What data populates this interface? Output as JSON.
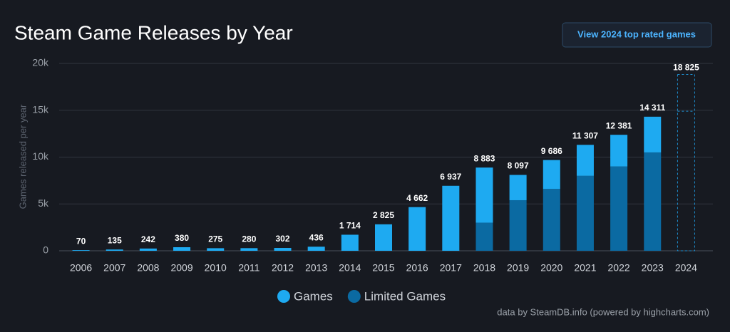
{
  "chart_data": {
    "type": "stacked-bar",
    "title": "Steam Game Releases by Year",
    "button": "View 2024 top rated games",
    "y_label": "Games released per year",
    "credit": "data by SteamDB.info (powered by highcharts.com)",
    "categories": [
      "2006",
      "2007",
      "2008",
      "2009",
      "2010",
      "2011",
      "2012",
      "2013",
      "2014",
      "2015",
      "2016",
      "2017",
      "2018",
      "2019",
      "2020",
      "2021",
      "2022",
      "2023",
      "2024"
    ],
    "series": [
      {
        "name": "Games",
        "color": "#1eaaf1",
        "values": [
          70,
          135,
          242,
          380,
          275,
          280,
          302,
          436,
          1714,
          2825,
          4662,
          6937,
          5883,
          2697,
          3086,
          3307,
          3381,
          3811,
          null
        ]
      },
      {
        "name": "Limited Games",
        "color": "#0b6aa2",
        "values": [
          0,
          0,
          0,
          0,
          0,
          0,
          0,
          0,
          0,
          0,
          0,
          0,
          3000,
          5400,
          6600,
          8000,
          9000,
          10500,
          null
        ]
      }
    ],
    "total_labels": [
      "70",
      "135",
      "242",
      "380",
      "275",
      "280",
      "302",
      "436",
      "1 714",
      "2 825",
      "4 662",
      "6 937",
      "8 883",
      "8 097",
      "9 686",
      "11 307",
      "12 381",
      "14 311",
      null
    ],
    "forecast": {
      "category": "2024",
      "value": 18825,
      "label": "18 825",
      "marker": 14900
    },
    "ylim": [
      0,
      20000
    ],
    "yticks": [
      0,
      {
        "value": 5000,
        "label": "5k"
      },
      {
        "value": 10000,
        "label": "10k"
      },
      {
        "value": 15000,
        "label": "15k"
      },
      {
        "value": 20000,
        "label": "20k"
      }
    ],
    "grid": true
  }
}
